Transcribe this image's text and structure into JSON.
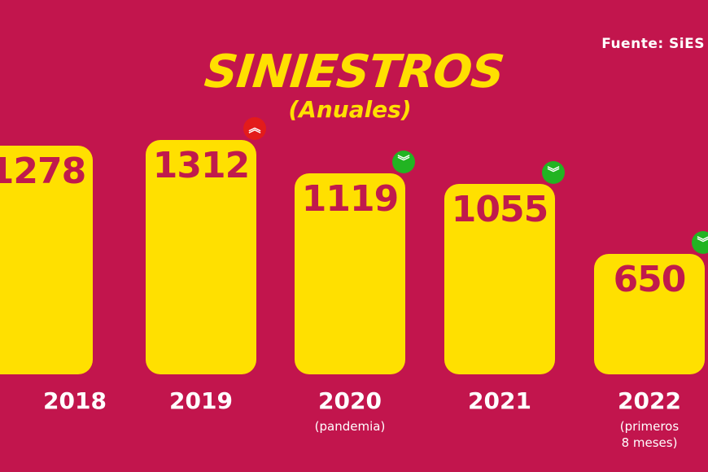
{
  "source": "Fuente:  SiES",
  "chart_data": {
    "type": "bar",
    "title": "SINIESTROS",
    "subtitle": "(Anuales)",
    "categories": [
      "2018",
      "2019",
      "2020",
      "2021",
      "2022"
    ],
    "category_notes": [
      "",
      "",
      "(pandemia)",
      "",
      "(primeros\n8 meses)"
    ],
    "values": [
      1278,
      1312,
      1119,
      1055,
      650
    ],
    "trend_badges": [
      null,
      "up",
      "down",
      "down",
      "down"
    ],
    "colors": {
      "background": "#c2154d",
      "bar": "#ffe000",
      "value_text": "#c01a4c",
      "up": "#e31b1b",
      "down": "#22b422"
    }
  }
}
